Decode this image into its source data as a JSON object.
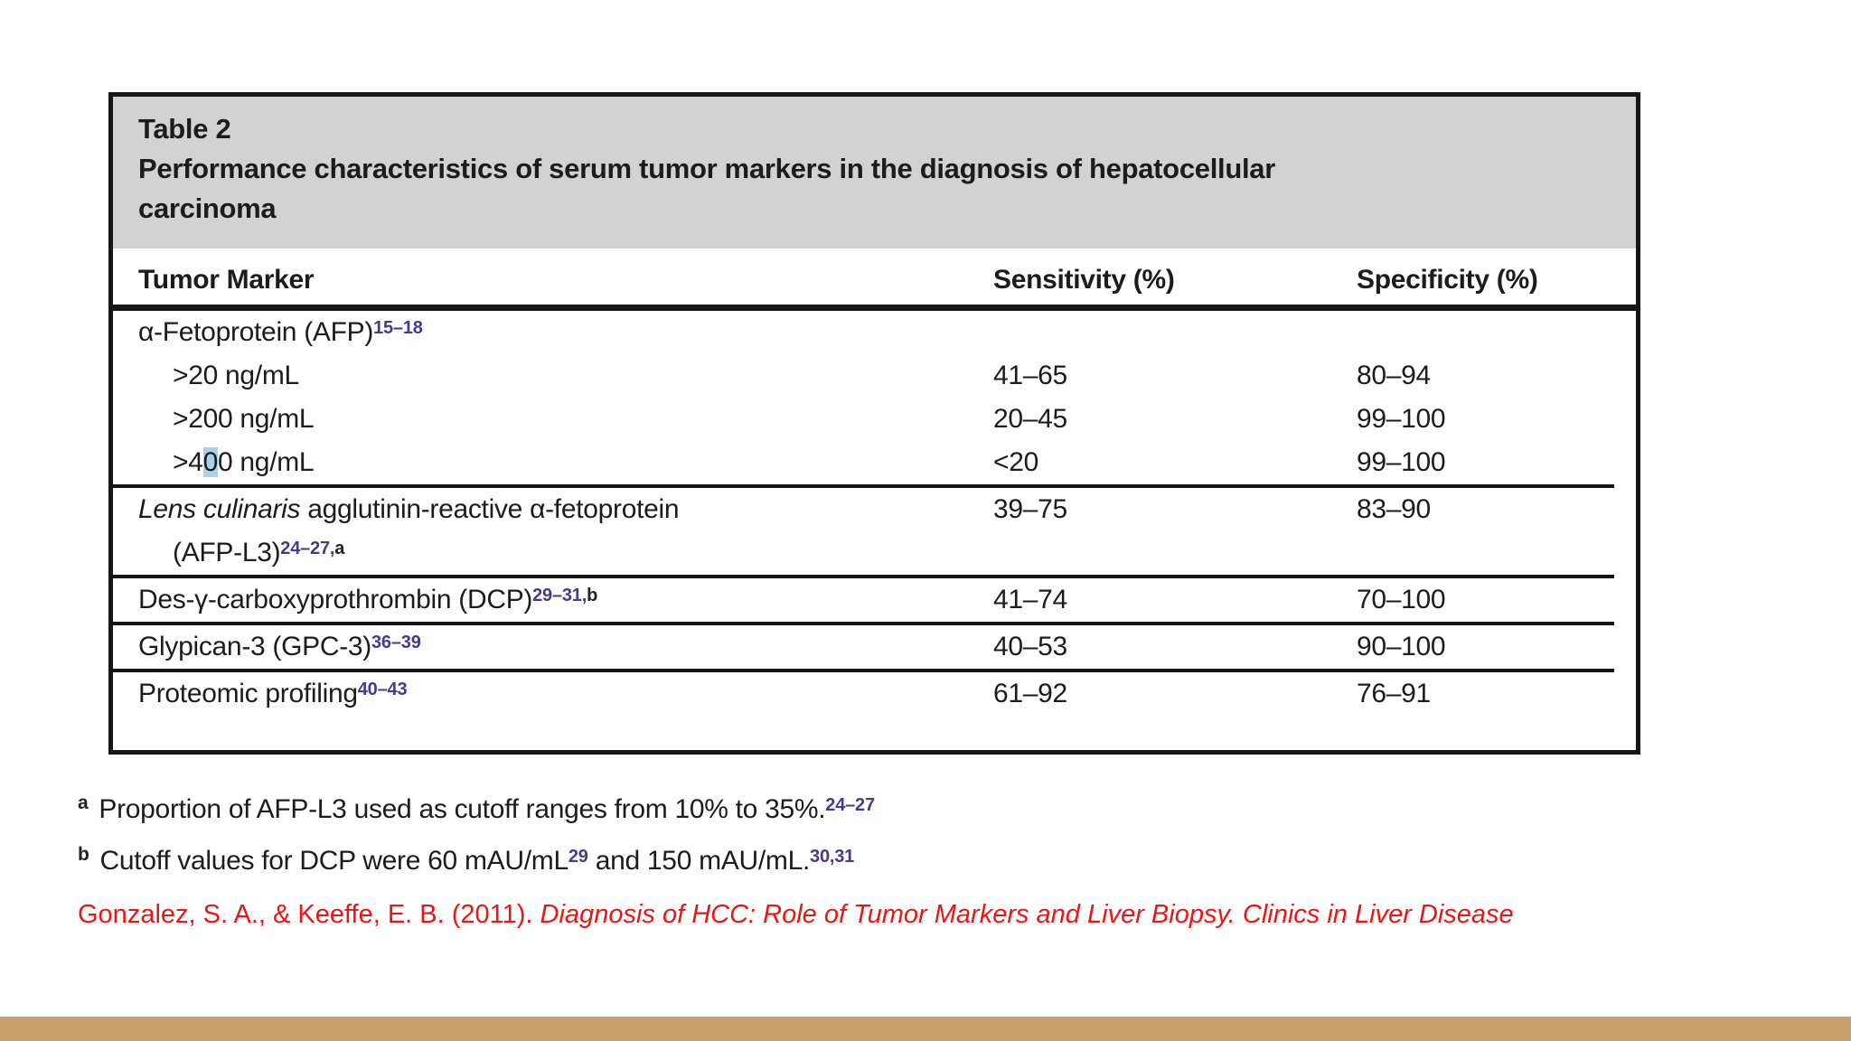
{
  "table": {
    "label": "Table 2",
    "title_lines": [
      "Performance characteristics of serum tumor markers in the diagnosis of hepatocellular",
      "carcinoma"
    ],
    "columns": [
      "Tumor Marker",
      "Sensitivity (%)",
      "Specificity (%)"
    ],
    "rows": [
      {
        "indent": 0,
        "label": [
          {
            "t": "α-Fetoprotein (AFP)"
          },
          {
            "t": "15–18",
            "s": "sup"
          }
        ],
        "sens": "",
        "spec": "",
        "rule_after": false
      },
      {
        "indent": 1,
        "label": [
          {
            "t": ">20 ng/mL"
          }
        ],
        "sens": "41–65",
        "spec": "80–94",
        "rule_after": false
      },
      {
        "indent": 1,
        "label": [
          {
            "t": ">200 ng/mL"
          }
        ],
        "sens": "20–45",
        "spec": "99–100",
        "rule_after": false
      },
      {
        "indent": 1,
        "label": [
          {
            "t": ">4"
          },
          {
            "t": "0",
            "s": "hl"
          },
          {
            "t": "0 ng/mL"
          }
        ],
        "sens": "<20",
        "spec": "99–100",
        "rule_after": true
      },
      {
        "indent": 0,
        "label": [
          {
            "t": "Lens culinaris",
            "s": "i"
          },
          {
            "t": " agglutinin-reactive α-fetoprotein"
          }
        ],
        "sens": "39–75",
        "spec": "83–90",
        "rule_after": false
      },
      {
        "indent": 1,
        "label": [
          {
            "t": "(AFP-L3)"
          },
          {
            "t": "24–27,",
            "s": "sup"
          },
          {
            "t": "a",
            "s": "supb"
          }
        ],
        "sens": "",
        "spec": "",
        "rule_after": true
      },
      {
        "indent": 0,
        "label": [
          {
            "t": "Des-γ-carboxyprothrombin (DCP)"
          },
          {
            "t": "29–31,",
            "s": "sup"
          },
          {
            "t": "b",
            "s": "supb"
          }
        ],
        "sens": "41–74",
        "spec": "70–100",
        "rule_after": true
      },
      {
        "indent": 0,
        "label": [
          {
            "t": "Glypican-3 (GPC-3)"
          },
          {
            "t": "36–39",
            "s": "sup"
          }
        ],
        "sens": "40–53",
        "spec": "90–100",
        "rule_after": true
      },
      {
        "indent": 0,
        "label": [
          {
            "t": "Proteomic profiling"
          },
          {
            "t": "40–43",
            "s": "sup"
          }
        ],
        "sens": "61–92",
        "spec": "76–91",
        "rule_after": false
      }
    ]
  },
  "footnotes": [
    {
      "marker": "a",
      "segments": [
        {
          "t": "Proportion of AFP-L3 used as cutoff ranges from 10% to 35%."
        },
        {
          "t": "24–27",
          "s": "sup"
        }
      ]
    },
    {
      "marker": "b",
      "segments": [
        {
          "t": "Cutoff values for DCP were 60 mAU/mL"
        },
        {
          "t": "29",
          "s": "sup"
        },
        {
          "t": " and 150 mAU/mL."
        },
        {
          "t": "30,31",
          "s": "sup"
        }
      ]
    }
  ],
  "citation": {
    "plain": "Gonzalez, S. A., & Keeffe, E. B. (2011). ",
    "italic": "Diagnosis of HCC: Role of Tumor Markers and Liver Biopsy. Clinics in Liver Disease"
  },
  "colors": {
    "table_border": "#161616",
    "header_bg": "#d2d2d2",
    "superscript_blue": "#453a8c",
    "highlight_blue": "#a9d2e6",
    "citation_red": "#ee1411",
    "bottom_bar_tan": "#c9a06b"
  }
}
